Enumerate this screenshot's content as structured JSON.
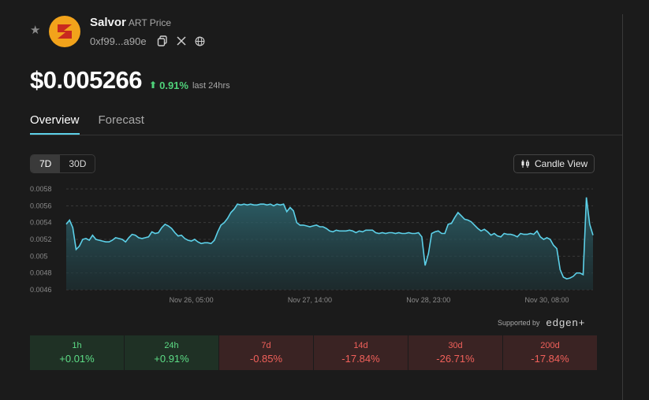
{
  "token": {
    "name": "Salvor",
    "subtitle": "ART Price",
    "address": "0xf99...a90e",
    "logo_color": "#f2a31b"
  },
  "price": {
    "value": "$0.005266",
    "change": "0.91%",
    "change_label": "last 24hrs",
    "change_color": "#4fd27a"
  },
  "tabs": [
    {
      "label": "Overview",
      "active": true
    },
    {
      "label": "Forecast",
      "active": false
    }
  ],
  "range": [
    {
      "label": "7D",
      "active": true
    },
    {
      "label": "30D",
      "active": false
    }
  ],
  "candle_view_label": "Candle View",
  "supported": {
    "label": "Supported by",
    "brand": "edgen+"
  },
  "stats": [
    {
      "period": "1h",
      "value": "+0.01%",
      "sign": "pos"
    },
    {
      "period": "24h",
      "value": "+0.91%",
      "sign": "pos"
    },
    {
      "period": "7d",
      "value": "-0.85%",
      "sign": "neg"
    },
    {
      "period": "14d",
      "value": "-17.84%",
      "sign": "neg"
    },
    {
      "period": "30d",
      "value": "-26.71%",
      "sign": "neg"
    },
    {
      "period": "200d",
      "value": "-17.84%",
      "sign": "neg"
    }
  ],
  "chart_data": {
    "type": "area",
    "ylim": [
      0.0046,
      0.0058
    ],
    "y_ticks": [
      "0.0058",
      "0.0056",
      "0.0054",
      "0.0052",
      "0.005",
      "0.0048",
      "0.0046"
    ],
    "y_tick_values": [
      0.0058,
      0.0056,
      0.0054,
      0.0052,
      0.005,
      0.0048,
      0.0046
    ],
    "x_ticks": [
      {
        "label": "Nov 26, 05:00",
        "index": 38
      },
      {
        "label": "Nov 27, 14:00",
        "index": 74
      },
      {
        "label": "Nov 28, 23:00",
        "index": 110
      },
      {
        "label": "Nov 30, 08:00",
        "index": 146
      }
    ],
    "line_color": "#5cd0e8",
    "series": [
      {
        "values": [
          0.00538,
          0.00543,
          0.00534,
          0.00508,
          0.00512,
          0.0052,
          0.00521,
          0.00519,
          0.00525,
          0.0052,
          0.00519,
          0.00518,
          0.00517,
          0.00517,
          0.00519,
          0.00522,
          0.00521,
          0.0052,
          0.00517,
          0.00522,
          0.00526,
          0.00525,
          0.00522,
          0.00521,
          0.00522,
          0.00523,
          0.00529,
          0.00527,
          0.00528,
          0.00534,
          0.00538,
          0.00536,
          0.00533,
          0.00528,
          0.00524,
          0.00525,
          0.00521,
          0.00519,
          0.00518,
          0.0052,
          0.00517,
          0.00515,
          0.00516,
          0.00516,
          0.00515,
          0.00519,
          0.00529,
          0.00537,
          0.0054,
          0.00545,
          0.00552,
          0.00556,
          0.00562,
          0.00561,
          0.00562,
          0.00561,
          0.00562,
          0.00561,
          0.00561,
          0.00562,
          0.00562,
          0.00561,
          0.00562,
          0.0056,
          0.00562,
          0.00561,
          0.00562,
          0.00553,
          0.00558,
          0.00554,
          0.0054,
          0.00537,
          0.00537,
          0.00536,
          0.00535,
          0.00536,
          0.00537,
          0.00535,
          0.00535,
          0.00533,
          0.0053,
          0.00529,
          0.00531,
          0.0053,
          0.0053,
          0.0053,
          0.00531,
          0.0053,
          0.00528,
          0.0053,
          0.00529,
          0.00531,
          0.00531,
          0.00531,
          0.00528,
          0.00527,
          0.00528,
          0.00527,
          0.00528,
          0.00528,
          0.00527,
          0.00528,
          0.00527,
          0.00527,
          0.00528,
          0.00527,
          0.00527,
          0.00528,
          0.00523,
          0.00489,
          0.00503,
          0.00527,
          0.00529,
          0.0053,
          0.00527,
          0.00527,
          0.00538,
          0.00539,
          0.00546,
          0.00552,
          0.00548,
          0.00544,
          0.00543,
          0.00541,
          0.00537,
          0.00533,
          0.0053,
          0.00532,
          0.00529,
          0.00525,
          0.00527,
          0.00524,
          0.00523,
          0.00527,
          0.00526,
          0.00526,
          0.00525,
          0.00523,
          0.00527,
          0.00526,
          0.00526,
          0.00527,
          0.00526,
          0.0053,
          0.00523,
          0.0052,
          0.00522,
          0.0052,
          0.00513,
          0.00509,
          0.00484,
          0.00475,
          0.00473,
          0.00474,
          0.00476,
          0.0048,
          0.0048,
          0.00478,
          0.0057,
          0.00538,
          0.00525
        ]
      }
    ]
  }
}
